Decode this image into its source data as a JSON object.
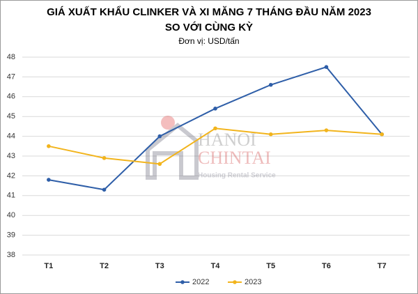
{
  "chart_data": {
    "type": "line",
    "title": "GIÁ XUẤT KHẨU CLINKER VÀ XI MĂNG 7 THÁNG ĐẦU NĂM 2023",
    "subtitle": "SO VỚI CÙNG KỲ",
    "unit": "Đơn vị: USD/tấn",
    "categories": [
      "T1",
      "T2",
      "T3",
      "T4",
      "T5",
      "T6",
      "T7"
    ],
    "series": [
      {
        "name": "2022",
        "color": "#2e5ea8",
        "values": [
          41.8,
          41.3,
          44.0,
          45.4,
          46.6,
          47.5,
          44.1
        ]
      },
      {
        "name": "2023",
        "color": "#f2b41c",
        "values": [
          43.5,
          42.9,
          42.6,
          44.4,
          44.1,
          44.3,
          44.1
        ]
      }
    ],
    "ylim": [
      38,
      48
    ],
    "yticks": [
      38,
      39,
      40,
      41,
      42,
      43,
      44,
      45,
      46,
      47,
      48
    ],
    "grid": true,
    "watermark": [
      "HANOI",
      "CHINTAI",
      "Housing Rental Service"
    ]
  }
}
